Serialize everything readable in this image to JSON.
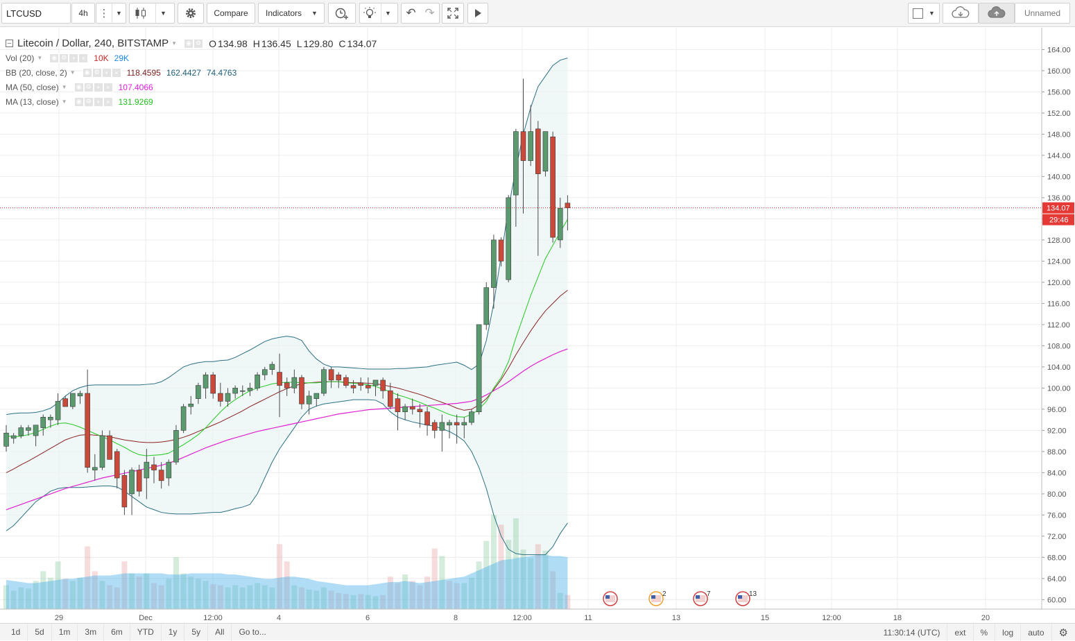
{
  "toolbar": {
    "symbol": "LTCUSD",
    "interval": "4h",
    "compare_label": "Compare",
    "indicators_label": "Indicators",
    "layout_name": "Unnamed",
    "icons": [
      "menu-dots-icon",
      "candles-icon",
      "gear-icon",
      "alert-add-icon",
      "lightbulb-icon",
      "undo-icon",
      "redo-icon",
      "fullscreen-icon",
      "play-icon",
      "layout-square-icon",
      "cloud-download-icon",
      "cloud-upload-icon"
    ]
  },
  "legend": {
    "title": "Litecoin / Dollar, 240, BITSTAMP",
    "ohlc": [
      {
        "k": "O",
        "v": "134.98"
      },
      {
        "k": "H",
        "v": "136.45"
      },
      {
        "k": "L",
        "v": "129.80"
      },
      {
        "k": "C",
        "v": "134.07"
      }
    ],
    "indicators": [
      {
        "name": "Vol (20)",
        "values": [
          {
            "v": "10K",
            "color": "#c62828"
          },
          {
            "v": "29K",
            "color": "#1e88e5"
          }
        ]
      },
      {
        "name": "BB (20, close, 2)",
        "values": [
          {
            "v": "118.4595",
            "color": "#7b1f1f"
          },
          {
            "v": "162.4427",
            "color": "#20607a"
          },
          {
            "v": "74.4763",
            "color": "#20607a"
          }
        ]
      },
      {
        "name": "MA (50, close)",
        "values": [
          {
            "v": "107.4066",
            "color": "#e020e0"
          }
        ]
      },
      {
        "name": "MA (13, close)",
        "values": [
          {
            "v": "131.9269",
            "color": "#22c022"
          }
        ]
      }
    ]
  },
  "price_axis": {
    "ticks": [
      "164.00",
      "160.00",
      "156.00",
      "152.00",
      "148.00",
      "144.00",
      "140.00",
      "136.00",
      "132.00",
      "128.00",
      "124.00",
      "120.00",
      "116.00",
      "112.00",
      "108.00",
      "104.00",
      "100.00",
      "96.00",
      "92.00",
      "88.00",
      "84.00",
      "80.00",
      "76.00",
      "72.00",
      "68.00",
      "64.00",
      "60.00"
    ],
    "last_price_label": "134.07",
    "countdown_label": "29:46",
    "last_price_color": "#e53935"
  },
  "time_axis": {
    "ticks": [
      "29",
      "Dec",
      "12:00",
      "4",
      "6",
      "8",
      "12:00",
      "11",
      "13",
      "15",
      "12:00",
      "18",
      "20"
    ]
  },
  "events": [
    {
      "badge": ""
    },
    {
      "badge": "2"
    },
    {
      "badge": "7"
    },
    {
      "badge": "13"
    }
  ],
  "chart_data": {
    "type": "candlestick",
    "y_range": [
      59,
      165.5
    ],
    "up_color": "#5b9a6e",
    "down_color": "#c94a3a",
    "candles": [
      {
        "o": 89,
        "h": 93,
        "l": 88,
        "c": 91.5
      },
      {
        "o": 90.5,
        "h": 91.5,
        "l": 89.5,
        "c": 91
      },
      {
        "o": 91,
        "h": 93,
        "l": 90.5,
        "c": 92.5
      },
      {
        "o": 92,
        "h": 93,
        "l": 91,
        "c": 92.5
      },
      {
        "o": 91,
        "h": 93,
        "l": 89,
        "c": 93
      },
      {
        "o": 92.5,
        "h": 95,
        "l": 91,
        "c": 94.5
      },
      {
        "o": 94,
        "h": 95,
        "l": 92.5,
        "c": 94.5
      },
      {
        "o": 94,
        "h": 99,
        "l": 93,
        "c": 97.5
      },
      {
        "o": 98,
        "h": 98.5,
        "l": 96.5,
        "c": 96.5
      },
      {
        "o": 96.5,
        "h": 99,
        "l": 96,
        "c": 99
      },
      {
        "o": 98.5,
        "h": 99.5,
        "l": 97,
        "c": 99
      },
      {
        "o": 99,
        "h": 103.5,
        "l": 84,
        "c": 85
      },
      {
        "o": 84.5,
        "h": 87.5,
        "l": 82.5,
        "c": 85
      },
      {
        "o": 85,
        "h": 92,
        "l": 84.5,
        "c": 91
      },
      {
        "o": 91,
        "h": 92,
        "l": 87,
        "c": 86.5
      },
      {
        "o": 88,
        "h": 88.5,
        "l": 81,
        "c": 83
      },
      {
        "o": 83.5,
        "h": 84.5,
        "l": 76,
        "c": 77.5
      },
      {
        "o": 80,
        "h": 85,
        "l": 76,
        "c": 84.5
      },
      {
        "o": 84.5,
        "h": 85.5,
        "l": 79.5,
        "c": 80.5
      },
      {
        "o": 83,
        "h": 88.5,
        "l": 79,
        "c": 86
      },
      {
        "o": 85.5,
        "h": 87,
        "l": 82,
        "c": 84.5
      },
      {
        "o": 84.5,
        "h": 86,
        "l": 81,
        "c": 82.5
      },
      {
        "o": 83,
        "h": 86.5,
        "l": 81.5,
        "c": 86
      },
      {
        "o": 86,
        "h": 93,
        "l": 85.5,
        "c": 92
      },
      {
        "o": 92,
        "h": 97,
        "l": 91.5,
        "c": 96.5
      },
      {
        "o": 96.5,
        "h": 98.5,
        "l": 95,
        "c": 97
      },
      {
        "o": 98,
        "h": 101,
        "l": 97,
        "c": 100.5
      },
      {
        "o": 100,
        "h": 103,
        "l": 98,
        "c": 102.5
      },
      {
        "o": 102.5,
        "h": 103,
        "l": 98,
        "c": 99
      },
      {
        "o": 99,
        "h": 101,
        "l": 96.5,
        "c": 97.5
      },
      {
        "o": 97.5,
        "h": 100,
        "l": 96.5,
        "c": 99
      },
      {
        "o": 99,
        "h": 100.5,
        "l": 98,
        "c": 100
      },
      {
        "o": 99.5,
        "h": 100.5,
        "l": 98.5,
        "c": 99.5
      },
      {
        "o": 99.5,
        "h": 101,
        "l": 98.5,
        "c": 100
      },
      {
        "o": 100,
        "h": 103,
        "l": 99.5,
        "c": 102.5
      },
      {
        "o": 102.5,
        "h": 104,
        "l": 101.5,
        "c": 103.5
      },
      {
        "o": 103.5,
        "h": 105,
        "l": 102.5,
        "c": 104.5
      },
      {
        "o": 103,
        "h": 106.5,
        "l": 94.5,
        "c": 100.5
      },
      {
        "o": 101,
        "h": 102,
        "l": 98.5,
        "c": 100
      },
      {
        "o": 100,
        "h": 103.5,
        "l": 99,
        "c": 102
      },
      {
        "o": 102,
        "h": 102.5,
        "l": 96,
        "c": 97
      },
      {
        "o": 97,
        "h": 99.5,
        "l": 95,
        "c": 98.5
      },
      {
        "o": 98,
        "h": 99,
        "l": 96.5,
        "c": 99
      },
      {
        "o": 99,
        "h": 104,
        "l": 98.5,
        "c": 103.5
      },
      {
        "o": 103.5,
        "h": 104,
        "l": 100,
        "c": 101.5
      },
      {
        "o": 102.5,
        "h": 103,
        "l": 100,
        "c": 101.5
      },
      {
        "o": 102,
        "h": 102.5,
        "l": 100,
        "c": 100.5
      },
      {
        "o": 100.5,
        "h": 101.5,
        "l": 99,
        "c": 100
      },
      {
        "o": 101,
        "h": 102,
        "l": 99.5,
        "c": 100.5
      },
      {
        "o": 100.5,
        "h": 102,
        "l": 99,
        "c": 100
      },
      {
        "o": 100.5,
        "h": 101.5,
        "l": 98.5,
        "c": 101.5
      },
      {
        "o": 101.5,
        "h": 102,
        "l": 98,
        "c": 99.5
      },
      {
        "o": 99.5,
        "h": 101,
        "l": 96,
        "c": 96.5
      },
      {
        "o": 98,
        "h": 99,
        "l": 92,
        "c": 95.5
      },
      {
        "o": 95.5,
        "h": 97,
        "l": 94,
        "c": 96.5
      },
      {
        "o": 96.5,
        "h": 98,
        "l": 95,
        "c": 96
      },
      {
        "o": 96,
        "h": 97,
        "l": 92.5,
        "c": 95.5
      },
      {
        "o": 95.5,
        "h": 96.5,
        "l": 91,
        "c": 93
      },
      {
        "o": 93.5,
        "h": 94,
        "l": 90.5,
        "c": 92
      },
      {
        "o": 92,
        "h": 95,
        "l": 88,
        "c": 93.5
      },
      {
        "o": 93,
        "h": 94,
        "l": 90.5,
        "c": 93.5
      },
      {
        "o": 93.5,
        "h": 95,
        "l": 89.5,
        "c": 93
      },
      {
        "o": 93,
        "h": 94.5,
        "l": 90.5,
        "c": 93.5
      },
      {
        "o": 93.5,
        "h": 96,
        "l": 93,
        "c": 95.5
      },
      {
        "o": 95.5,
        "h": 112,
        "l": 95,
        "c": 112
      },
      {
        "o": 112,
        "h": 120,
        "l": 111,
        "c": 119
      },
      {
        "o": 119,
        "h": 129,
        "l": 115,
        "c": 128
      },
      {
        "o": 128,
        "h": 128.5,
        "l": 123,
        "c": 124
      },
      {
        "o": 120.5,
        "h": 136.5,
        "l": 120,
        "c": 136
      },
      {
        "o": 136.5,
        "h": 149,
        "l": 130.5,
        "c": 148.5
      },
      {
        "o": 148.5,
        "h": 158.5,
        "l": 133,
        "c": 143
      },
      {
        "o": 143,
        "h": 153.5,
        "l": 142,
        "c": 148.5
      },
      {
        "o": 149,
        "h": 150.5,
        "l": 125,
        "c": 140.5
      },
      {
        "o": 141,
        "h": 148.5,
        "l": 140,
        "c": 148.5
      },
      {
        "o": 147.5,
        "h": 148.5,
        "l": 127.5,
        "c": 128.5
      },
      {
        "o": 128,
        "h": 136,
        "l": 126.5,
        "c": 134
      },
      {
        "o": 134.98,
        "h": 136.45,
        "l": 129.8,
        "c": 134.07
      }
    ],
    "volume": [
      {
        "v": 0.22,
        "up": true
      },
      {
        "v": 0.17,
        "up": true
      },
      {
        "v": 0.2,
        "up": true
      },
      {
        "v": 0.19,
        "up": true
      },
      {
        "v": 0.26,
        "up": true
      },
      {
        "v": 0.35,
        "up": true
      },
      {
        "v": 0.29,
        "up": true
      },
      {
        "v": 0.44,
        "up": true
      },
      {
        "v": 0.28,
        "up": false
      },
      {
        "v": 0.26,
        "up": true
      },
      {
        "v": 0.29,
        "up": true
      },
      {
        "v": 0.58,
        "up": false
      },
      {
        "v": 0.35,
        "up": false
      },
      {
        "v": 0.26,
        "up": true
      },
      {
        "v": 0.22,
        "up": false
      },
      {
        "v": 0.2,
        "up": false
      },
      {
        "v": 0.44,
        "up": false
      },
      {
        "v": 0.33,
        "up": true
      },
      {
        "v": 0.3,
        "up": false
      },
      {
        "v": 0.33,
        "up": true
      },
      {
        "v": 0.24,
        "up": false
      },
      {
        "v": 0.22,
        "up": false
      },
      {
        "v": 0.28,
        "up": true
      },
      {
        "v": 0.48,
        "up": true
      },
      {
        "v": 0.33,
        "up": true
      },
      {
        "v": 0.3,
        "up": true
      },
      {
        "v": 0.28,
        "up": true
      },
      {
        "v": 0.26,
        "up": true
      },
      {
        "v": 0.23,
        "up": false
      },
      {
        "v": 0.22,
        "up": false
      },
      {
        "v": 0.2,
        "up": true
      },
      {
        "v": 0.22,
        "up": true
      },
      {
        "v": 0.2,
        "up": true
      },
      {
        "v": 0.22,
        "up": true
      },
      {
        "v": 0.24,
        "up": true
      },
      {
        "v": 0.22,
        "up": true
      },
      {
        "v": 0.2,
        "up": true
      },
      {
        "v": 0.6,
        "up": false
      },
      {
        "v": 0.44,
        "up": false
      },
      {
        "v": 0.22,
        "up": true
      },
      {
        "v": 0.2,
        "up": false
      },
      {
        "v": 0.18,
        "up": true
      },
      {
        "v": 0.17,
        "up": true
      },
      {
        "v": 0.2,
        "up": true
      },
      {
        "v": 0.17,
        "up": false
      },
      {
        "v": 0.15,
        "up": false
      },
      {
        "v": 0.14,
        "up": false
      },
      {
        "v": 0.13,
        "up": true
      },
      {
        "v": 0.14,
        "up": false
      },
      {
        "v": 0.13,
        "up": true
      },
      {
        "v": 0.12,
        "up": true
      },
      {
        "v": 0.13,
        "up": false
      },
      {
        "v": 0.3,
        "up": false
      },
      {
        "v": 0.24,
        "up": false
      },
      {
        "v": 0.32,
        "up": true
      },
      {
        "v": 0.26,
        "up": false
      },
      {
        "v": 0.22,
        "up": false
      },
      {
        "v": 0.3,
        "up": false
      },
      {
        "v": 0.56,
        "up": false
      },
      {
        "v": 0.49,
        "up": true
      },
      {
        "v": 0.26,
        "up": false
      },
      {
        "v": 0.24,
        "up": false
      },
      {
        "v": 0.24,
        "up": true
      },
      {
        "v": 0.29,
        "up": true
      },
      {
        "v": 0.44,
        "up": true
      },
      {
        "v": 0.63,
        "up": true
      },
      {
        "v": 0.87,
        "up": true
      },
      {
        "v": 0.78,
        "up": false
      },
      {
        "v": 0.64,
        "up": true
      },
      {
        "v": 0.84,
        "up": true
      },
      {
        "v": 0.55,
        "up": true
      },
      {
        "v": 0.47,
        "up": true
      },
      {
        "v": 0.6,
        "up": false
      },
      {
        "v": 0.54,
        "up": true
      },
      {
        "v": 0.35,
        "up": false
      },
      {
        "v": 0.15,
        "up": true
      },
      {
        "v": 0.13,
        "up": false
      }
    ],
    "volume_ma": [
      0.27,
      0.26,
      0.25,
      0.24,
      0.24,
      0.25,
      0.26,
      0.27,
      0.28,
      0.28,
      0.29,
      0.3,
      0.31,
      0.31,
      0.31,
      0.32,
      0.33,
      0.33,
      0.33,
      0.33,
      0.33,
      0.33,
      0.32,
      0.32,
      0.32,
      0.33,
      0.33,
      0.33,
      0.33,
      0.33,
      0.32,
      0.32,
      0.31,
      0.3,
      0.29,
      0.28,
      0.28,
      0.29,
      0.3,
      0.3,
      0.29,
      0.28,
      0.26,
      0.25,
      0.24,
      0.23,
      0.22,
      0.22,
      0.22,
      0.22,
      0.23,
      0.24,
      0.25,
      0.25,
      0.26,
      0.25,
      0.24,
      0.25,
      0.26,
      0.27,
      0.28,
      0.29,
      0.3,
      0.33,
      0.36,
      0.39,
      0.42,
      0.45,
      0.46,
      0.47,
      0.48,
      0.49,
      0.5,
      0.5,
      0.49,
      0.49,
      0.48
    ],
    "ma13": [
      91,
      90.8,
      90.9,
      91.2,
      91.6,
      92.2,
      92.8,
      93.3,
      93.4,
      93.1,
      92.6,
      92,
      91.4,
      90.8,
      90.2,
      89.5,
      88.8,
      88,
      87.4,
      87.2,
      87.3,
      87.4,
      87.7,
      88.5,
      89.3,
      90.2,
      91.2,
      92.5,
      94,
      95.5,
      96.8,
      97.8,
      98.7,
      99.5,
      100,
      100.4,
      100.8,
      101,
      101.1,
      101.1,
      101,
      101,
      101,
      101.1,
      101.2,
      101.2,
      101,
      100.9,
      100.8,
      100.6,
      100.3,
      99.8,
      99.3,
      98.7,
      98.3,
      97.8,
      97.3,
      96.7,
      96.2,
      95.6,
      95,
      94.6,
      94.5,
      95,
      96,
      97.5,
      100,
      102,
      105,
      109.5,
      113.5,
      117.5,
      121,
      124.5,
      127,
      129.5,
      131.9
    ],
    "ma50": [
      77,
      77.5,
      78,
      78.5,
      79,
      79.5,
      80,
      80.5,
      81,
      81.4,
      81.8,
      82.2,
      82.6,
      83,
      83.3,
      83.6,
      83.9,
      84.2,
      84.5,
      84.8,
      85.1,
      85.4,
      85.8,
      86.3,
      86.9,
      87.5,
      88.1,
      88.7,
      89.2,
      89.7,
      90.2,
      90.6,
      91,
      91.4,
      91.8,
      92.1,
      92.4,
      92.7,
      93,
      93.3,
      93.6,
      93.9,
      94.2,
      94.5,
      94.8,
      95.1,
      95.3,
      95.5,
      95.7,
      95.9,
      96,
      96.1,
      96.2,
      96.3,
      96.4,
      96.5,
      96.6,
      96.7,
      96.8,
      96.9,
      97,
      97.1,
      97.3,
      97.5,
      98,
      98.7,
      99.5,
      100.3,
      101.2,
      102.2,
      103.2,
      104.1,
      104.9,
      105.6,
      106.3,
      106.9,
      107.4
    ],
    "bb_mid": [
      84,
      84.7,
      85.5,
      86.2,
      87,
      87.8,
      88.6,
      89.4,
      90.2,
      90.7,
      91.1,
      91.2,
      91.1,
      91,
      90.8,
      90.5,
      90.2,
      90,
      89.8,
      89.7,
      89.7,
      89.8,
      90,
      90.3,
      90.7,
      91.2,
      91.8,
      92.4,
      93,
      93.6,
      94.3,
      95,
      95.7,
      96.5,
      97.2,
      97.9,
      98.6,
      99.3,
      99.9,
      100.4,
      100.8,
      101,
      101.1,
      101.2,
      101.2,
      101.2,
      101.1,
      101,
      101,
      100.9,
      100.8,
      100.6,
      100.3,
      100,
      99.6,
      99.2,
      98.8,
      98.3,
      97.8,
      97.3,
      96.8,
      96.2,
      95.8,
      96,
      96.8,
      98,
      99.7,
      101.6,
      103.8,
      106.3,
      108.6,
      110.8,
      112.8,
      114.6,
      116,
      117.4,
      118.5
    ],
    "bb_up": [
      95,
      95.2,
      95.3,
      95.3,
      95.4,
      95.7,
      96.2,
      97.2,
      98.5,
      99.5,
      100.1,
      100.5,
      100.6,
      100.6,
      100.6,
      100.6,
      100.6,
      100.6,
      100.6,
      100.7,
      100.8,
      101.2,
      102,
      103,
      104,
      104.5,
      104.8,
      105,
      105,
      105.2,
      105.3,
      105.8,
      106.5,
      107.2,
      108,
      108.8,
      109.3,
      109.6,
      109.8,
      109.6,
      109,
      107,
      105.5,
      104.5,
      104,
      104,
      103.9,
      103.8,
      103.7,
      103.6,
      103.6,
      103.6,
      103.6,
      103.7,
      103.7,
      103.8,
      103.9,
      104,
      104.3,
      104.5,
      104.7,
      104.9,
      104.3,
      103.5,
      104.5,
      109,
      116,
      125,
      134,
      141.5,
      148,
      153,
      157,
      159,
      161,
      162,
      162.4
    ],
    "bb_lo": [
      73,
      74,
      75.5,
      77,
      78.5,
      79.5,
      80.5,
      81,
      81.2,
      81.2,
      81.2,
      81.3,
      81.4,
      81.5,
      81.5,
      81.3,
      80.5,
      79.5,
      78.5,
      77.5,
      77,
      76.5,
      76.3,
      76.2,
      76.2,
      76.2,
      76.3,
      76.4,
      76.5,
      76.5,
      76.8,
      77.2,
      77.5,
      78,
      80,
      83,
      86,
      88.5,
      90.5,
      92.5,
      94.5,
      96,
      96.6,
      97,
      97.2,
      97.4,
      97.6,
      97.8,
      97.8,
      97.8,
      97.7,
      97,
      95.5,
      94.5,
      94,
      93.6,
      93.3,
      93,
      92.8,
      92.3,
      91.8,
      91,
      90,
      88,
      85,
      81,
      76,
      72,
      69.5,
      68.7,
      68.5,
      68.5,
      68.5,
      68.5,
      70,
      72.5,
      74.5
    ]
  }
}
